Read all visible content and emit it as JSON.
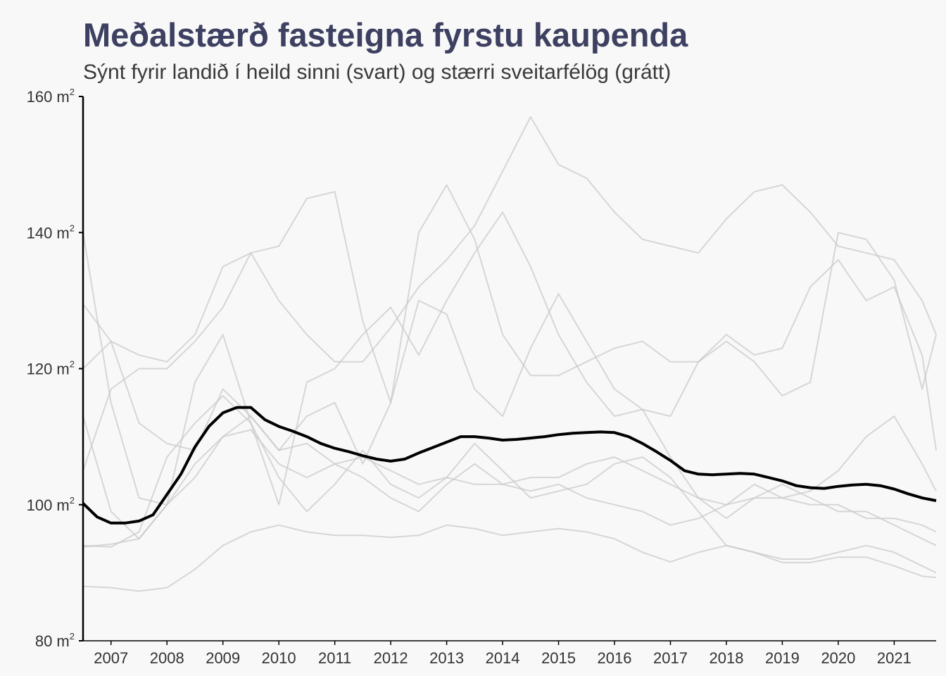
{
  "title": "Meðalstærð fasteigna fyrstu kaupenda",
  "subtitle": "Sýnt fyrir landið í heild sinni (svart) og stærri sveitarfélög (grátt)",
  "colors": {
    "background": "#f9f8f8",
    "title": "#3d4061",
    "national_line": "#000000",
    "municipality_line": "#c8c8c8"
  },
  "chart_data": {
    "type": "line",
    "title": "Meðalstærð fasteigna fyrstu kaupenda",
    "subtitle": "Sýnt fyrir landið í heild sinni (svart) og stærri sveitarfélög (grátt)",
    "xlabel": "",
    "ylabel": "",
    "xlim": [
      2006.5,
      2021.75
    ],
    "ylim": [
      80,
      160
    ],
    "y_unit": "m",
    "y_unit_superscript": "2",
    "x_ticks": [
      "2007",
      "2008",
      "2009",
      "2010",
      "2011",
      "2012",
      "2013",
      "2014",
      "2015",
      "2016",
      "2017",
      "2018",
      "2019",
      "2020",
      "2021"
    ],
    "y_ticks": [
      80,
      100,
      120,
      140,
      160
    ],
    "grid": false,
    "legend": "none",
    "national": {
      "x": [
        2006.5,
        2006.75,
        2007.0,
        2007.25,
        2007.5,
        2007.75,
        2008.0,
        2008.25,
        2008.5,
        2008.75,
        2009.0,
        2009.25,
        2009.5,
        2009.75,
        2010.0,
        2010.25,
        2010.5,
        2010.75,
        2011.0,
        2011.25,
        2011.5,
        2011.75,
        2012.0,
        2012.25,
        2012.5,
        2012.75,
        2013.0,
        2013.25,
        2013.5,
        2013.75,
        2014.0,
        2014.25,
        2014.5,
        2014.75,
        2015.0,
        2015.25,
        2015.5,
        2015.75,
        2016.0,
        2016.25,
        2016.5,
        2016.75,
        2017.0,
        2017.25,
        2017.5,
        2017.75,
        2018.0,
        2018.25,
        2018.5,
        2018.75,
        2019.0,
        2019.25,
        2019.5,
        2019.75,
        2020.0,
        2020.25,
        2020.5,
        2020.75,
        2021.0,
        2021.25,
        2021.5,
        2021.75
      ],
      "y": [
        100.2,
        98.2,
        97.3,
        97.3,
        97.6,
        98.5,
        101.5,
        104.5,
        108.5,
        111.5,
        113.5,
        114.3,
        114.3,
        112.5,
        111.5,
        110.8,
        110.0,
        109.0,
        108.3,
        107.8,
        107.2,
        106.7,
        106.4,
        106.7,
        107.6,
        108.4,
        109.2,
        110.0,
        110.0,
        109.8,
        109.5,
        109.6,
        109.8,
        110.0,
        110.3,
        110.5,
        110.6,
        110.7,
        110.6,
        110.0,
        109.0,
        107.8,
        106.5,
        105.0,
        104.5,
        104.4,
        104.5,
        104.6,
        104.5,
        104.0,
        103.5,
        102.8,
        102.5,
        102.4,
        102.7,
        102.9,
        103.0,
        102.8,
        102.3,
        101.6,
        101.0,
        100.6
      ]
    },
    "municipalities": [
      {
        "x": [
          2006.5,
          2007.0,
          2007.5,
          2008.0,
          2008.5,
          2009.0,
          2009.5,
          2010.0,
          2010.5,
          2011.0,
          2011.5,
          2012.0,
          2012.5,
          2013.0,
          2013.5,
          2014.0,
          2014.5,
          2015.0,
          2015.5,
          2016.0,
          2016.5,
          2017.0,
          2017.5,
          2018.0,
          2018.5,
          2019.0,
          2019.5,
          2020.0,
          2020.5,
          2021.0,
          2021.5,
          2021.75
        ],
        "y": [
          129.5,
          124,
          112,
          109,
          108,
          117,
          113,
          108,
          113,
          115,
          106,
          115,
          130,
          128,
          117,
          113,
          123,
          131,
          124,
          117,
          114,
          107,
          101,
          98,
          101,
          103,
          101,
          99,
          99,
          97,
          95,
          94
        ]
      },
      {
        "x": [
          2006.5,
          2007.0,
          2007.5,
          2008.0,
          2008.5,
          2009.0,
          2009.5,
          2010.0,
          2010.5,
          2011.0,
          2011.5,
          2012.0,
          2012.5,
          2013.0,
          2013.5,
          2014.0,
          2014.5,
          2015.0,
          2015.5,
          2016.0,
          2016.5,
          2017.0,
          2017.5,
          2018.0,
          2018.5,
          2019.0,
          2019.5,
          2020.0,
          2020.5,
          2021.0,
          2021.5,
          2021.75
        ],
        "y": [
          140,
          115,
          101,
          100,
          104,
          110,
          113,
          108,
          109,
          106,
          104,
          101,
          99,
          103,
          106,
          103,
          102,
          103,
          101,
          100,
          99,
          97,
          98,
          100,
          103,
          101,
          102,
          105,
          110,
          113,
          106,
          102
        ]
      },
      {
        "x": [
          2006.5,
          2007.0,
          2007.5,
          2008.0,
          2008.5,
          2009.0,
          2009.5,
          2010.0,
          2010.5,
          2011.0,
          2011.5,
          2012.0,
          2012.5,
          2013.0,
          2013.5,
          2014.0,
          2014.5,
          2015.0,
          2015.5,
          2016.0,
          2016.5,
          2017.0,
          2017.5,
          2018.0,
          2018.5,
          2019.0,
          2019.5,
          2020.0,
          2020.5,
          2021.0,
          2021.5,
          2021.75
        ],
        "y": [
          120,
          124,
          122,
          121,
          125,
          135,
          137,
          130,
          125,
          121,
          121,
          126,
          132,
          136,
          141,
          149,
          157,
          150,
          148,
          143,
          139,
          138,
          137,
          142,
          146,
          147,
          143,
          138,
          137,
          136,
          130,
          125
        ]
      },
      {
        "x": [
          2006.5,
          2007.0,
          2007.5,
          2008.0,
          2008.5,
          2009.0,
          2009.5,
          2010.0,
          2010.5,
          2011.0,
          2011.5,
          2012.0,
          2012.5,
          2013.0,
          2013.5,
          2014.0,
          2014.5,
          2015.0,
          2015.5,
          2016.0,
          2016.5,
          2017.0,
          2017.5,
          2018.0,
          2018.5,
          2019.0,
          2019.5,
          2020.0,
          2020.5,
          2021.0,
          2021.5,
          2021.75
        ],
        "y": [
          113,
          99,
          95,
          100,
          118,
          125,
          112,
          100,
          118,
          120,
          125,
          129,
          122,
          130,
          137,
          143,
          135,
          125,
          118,
          113,
          114,
          113,
          121,
          125,
          122,
          123,
          132,
          136,
          130,
          132,
          122,
          108
        ]
      },
      {
        "x": [
          2006.5,
          2007.0,
          2007.5,
          2008.0,
          2008.5,
          2009.0,
          2009.5,
          2010.0,
          2010.5,
          2011.0,
          2011.5,
          2012.0,
          2012.5,
          2013.0,
          2013.5,
          2014.0,
          2014.5,
          2015.0,
          2015.5,
          2016.0,
          2016.5,
          2017.0,
          2017.5,
          2018.0,
          2018.5,
          2019.0,
          2019.5,
          2020.0,
          2020.5,
          2021.0,
          2021.5,
          2021.75
        ],
        "y": [
          93.8,
          94.2,
          95,
          100,
          106,
          110,
          111,
          106,
          104,
          106,
          107,
          105,
          103,
          104,
          103,
          103,
          104,
          104,
          106,
          107,
          105,
          103,
          101,
          100,
          101,
          101,
          100,
          100,
          98,
          98,
          97,
          96
        ]
      },
      {
        "x": [
          2006.5,
          2007.0,
          2007.5,
          2008.0,
          2008.5,
          2009.0,
          2009.5,
          2010.0,
          2010.5,
          2011.0,
          2011.5,
          2012.0,
          2012.5,
          2013.0,
          2013.5,
          2014.0,
          2014.5,
          2015.0,
          2015.5,
          2016.0,
          2016.5,
          2017.0,
          2017.5,
          2018.0,
          2018.5,
          2019.0,
          2019.5,
          2020.0,
          2020.5,
          2021.0,
          2021.5,
          2021.75
        ],
        "y": [
          88,
          87.8,
          87.3,
          87.8,
          90.5,
          94,
          96,
          97,
          96,
          95.5,
          95.5,
          95.2,
          95.5,
          97,
          96.5,
          95.5,
          96,
          96.5,
          96,
          95,
          93,
          91.6,
          93,
          94,
          93,
          92,
          92,
          93,
          94,
          93,
          91,
          90
        ]
      },
      {
        "x": [
          2006.5,
          2007.0,
          2007.5,
          2008.0,
          2008.5,
          2009.0,
          2009.5,
          2010.0,
          2010.5,
          2011.0,
          2011.5,
          2012.0,
          2012.5,
          2013.0,
          2013.5,
          2014.0,
          2014.5,
          2015.0,
          2015.5,
          2016.0,
          2016.5,
          2017.0,
          2017.5,
          2018.0,
          2018.5,
          2019.0,
          2019.5,
          2020.0,
          2020.5,
          2021.0,
          2021.5,
          2021.75
        ],
        "y": [
          94,
          93.8,
          96,
          107,
          112,
          116,
          112,
          104,
          99,
          103,
          108,
          103,
          101,
          104,
          109,
          105,
          101,
          102,
          103,
          106,
          107,
          104,
          99,
          94,
          93,
          91.5,
          91.5,
          92.3,
          92.3,
          91,
          89.5,
          89.3
        ]
      },
      {
        "x": [
          2006.5,
          2007.0,
          2007.5,
          2008.0,
          2008.5,
          2009.0,
          2009.5,
          2010.0,
          2010.5,
          2011.0,
          2011.5,
          2012.0,
          2012.5,
          2013.0,
          2013.5,
          2014.0,
          2014.5,
          2015.0,
          2015.5,
          2016.0,
          2016.5,
          2017.0,
          2017.5,
          2018.0,
          2018.5,
          2019.0,
          2019.5,
          2020.0,
          2020.5,
          2021.0,
          2021.5,
          2021.75
        ],
        "y": [
          105,
          117,
          120,
          120,
          124,
          129,
          137,
          138,
          145,
          146,
          127,
          115,
          140,
          147,
          139,
          125,
          119,
          119,
          121,
          123,
          124,
          121,
          121,
          124,
          121,
          116,
          118,
          140,
          139,
          133,
          117,
          125
        ]
      }
    ]
  }
}
